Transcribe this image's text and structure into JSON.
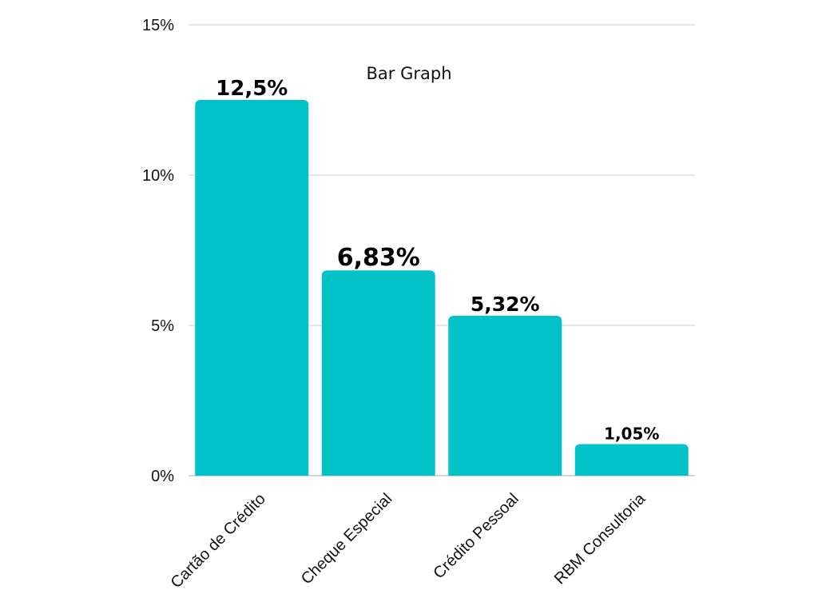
{
  "chart_data": {
    "type": "bar",
    "title": "Bar Graph",
    "categories": [
      "Cartão de Crédito",
      "Cheque Especial",
      "Crédito Pessoal",
      "RBM Consultoria"
    ],
    "values": [
      12.5,
      6.83,
      5.32,
      1.05
    ],
    "value_labels": [
      "12,5%",
      "6,83%",
      "5,32%",
      "1,05%"
    ],
    "ylim": [
      0,
      15
    ],
    "yticks": [
      0,
      5,
      10,
      15
    ],
    "ytick_labels": [
      "0%",
      "5%",
      "10%",
      "15%"
    ],
    "xlabel": "",
    "ylabel": "",
    "grid": true,
    "legend": "none",
    "bar_color": "#00C2C7",
    "grid_color": "#CCCCCC"
  }
}
